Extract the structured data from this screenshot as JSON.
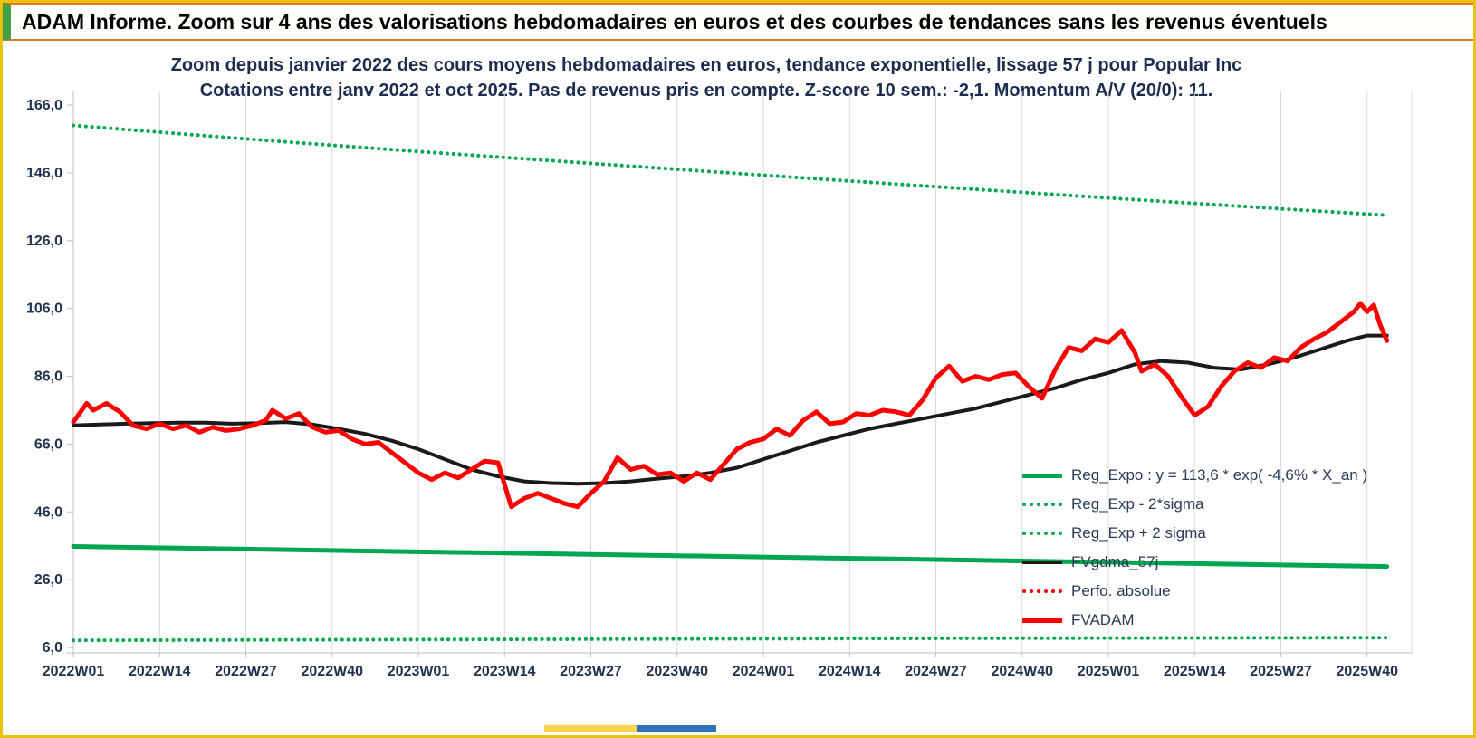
{
  "window": {
    "title": "ADAM Informe. Zoom sur 4 ans des valorisations hebdomadaires en euros et des courbes de tendances sans les revenus éventuels"
  },
  "chart_data": {
    "type": "line",
    "title": "Zoom depuis janvier 2022 des cours moyens hebdomadaires en euros, tendance exponentielle, lissage 57 j pour Popular Inc",
    "subtitle": "Cotations entre janv 2022 et oct 2025. Pas de revenus pris en compte. Z-score 10 sem.: -2,1. Momentum A/V (20/0): 11.",
    "xlim": [
      0,
      202
    ],
    "ylim": [
      6,
      166
    ],
    "grid": "vertical-only",
    "legend_position": "bottom-right-inside",
    "y_ticks": [
      {
        "v": 6,
        "label": "6,0"
      },
      {
        "v": 26,
        "label": "26,0"
      },
      {
        "v": 46,
        "label": "46,0"
      },
      {
        "v": 66,
        "label": "66,0"
      },
      {
        "v": 86,
        "label": "86,0"
      },
      {
        "v": 106,
        "label": "106,0"
      },
      {
        "v": 126,
        "label": "126,0"
      },
      {
        "v": 146,
        "label": "146,0"
      },
      {
        "v": 166,
        "label": "166,0"
      }
    ],
    "x_ticks": [
      {
        "w": 0,
        "label": "2022W01"
      },
      {
        "w": 13,
        "label": "2022W14"
      },
      {
        "w": 26,
        "label": "2022W27"
      },
      {
        "w": 39,
        "label": "2022W40"
      },
      {
        "w": 52,
        "label": "2023W01"
      },
      {
        "w": 65,
        "label": "2023W14"
      },
      {
        "w": 78,
        "label": "2023W27"
      },
      {
        "w": 91,
        "label": "2023W40"
      },
      {
        "w": 104,
        "label": "2024W01"
      },
      {
        "w": 117,
        "label": "2024W14"
      },
      {
        "w": 130,
        "label": "2024W27"
      },
      {
        "w": 143,
        "label": "2024W40"
      },
      {
        "w": 156,
        "label": "2025W01"
      },
      {
        "w": 169,
        "label": "2025W14"
      },
      {
        "w": 182,
        "label": "2025W27"
      },
      {
        "w": 195,
        "label": "2025W40"
      }
    ],
    "series": [
      {
        "name": "Reg_Exp - 2*sigma",
        "color": "#00a651",
        "style": "dotted",
        "width": 4,
        "points": [
          [
            0,
            8.1
          ],
          [
            66,
            8.4
          ],
          [
            132,
            8.7
          ],
          [
            198,
            8.9
          ]
        ]
      },
      {
        "name": "Reg_Exp + 2 sigma",
        "color": "#00a651",
        "style": "dotted",
        "width": 4,
        "points": [
          [
            0,
            160
          ],
          [
            26,
            156
          ],
          [
            52,
            152.3
          ],
          [
            78,
            148.8
          ],
          [
            104,
            145.3
          ],
          [
            130,
            141.9
          ],
          [
            156,
            138.6
          ],
          [
            182,
            135.4
          ],
          [
            198,
            133.5
          ]
        ]
      },
      {
        "name": "Reg_Expo : y = 113,6 * exp( -4,6% * X_an )",
        "color": "#00a651",
        "style": "solid",
        "width": 5,
        "points": [
          [
            0,
            35.8
          ],
          [
            40,
            34.6
          ],
          [
            80,
            33.4
          ],
          [
            120,
            32.2
          ],
          [
            160,
            31
          ],
          [
            198,
            29.9
          ]
        ]
      },
      {
        "name": "FVgdma_57j",
        "color": "#1a1a1a",
        "style": "solid",
        "width": 4,
        "points": [
          [
            0,
            71.5
          ],
          [
            4,
            71.8
          ],
          [
            8,
            72
          ],
          [
            12,
            72.2
          ],
          [
            16,
            72.3
          ],
          [
            20,
            72.3
          ],
          [
            24,
            72
          ],
          [
            28,
            72.2
          ],
          [
            32,
            72.5
          ],
          [
            36,
            71.8
          ],
          [
            40,
            70.5
          ],
          [
            44,
            69
          ],
          [
            48,
            67
          ],
          [
            52,
            64.5
          ],
          [
            56,
            61.5
          ],
          [
            60,
            58.5
          ],
          [
            64,
            56.5
          ],
          [
            68,
            55
          ],
          [
            72,
            54.5
          ],
          [
            76,
            54.3
          ],
          [
            80,
            54.5
          ],
          [
            84,
            55
          ],
          [
            88,
            55.8
          ],
          [
            92,
            56.5
          ],
          [
            96,
            57.5
          ],
          [
            100,
            59
          ],
          [
            104,
            61.5
          ],
          [
            108,
            64
          ],
          [
            112,
            66.5
          ],
          [
            116,
            68.5
          ],
          [
            120,
            70.5
          ],
          [
            124,
            72
          ],
          [
            128,
            73.5
          ],
          [
            132,
            75
          ],
          [
            136,
            76.5
          ],
          [
            140,
            78.5
          ],
          [
            144,
            80.5
          ],
          [
            148,
            82.5
          ],
          [
            152,
            85
          ],
          [
            156,
            87
          ],
          [
            160,
            89.5
          ],
          [
            164,
            90.5
          ],
          [
            168,
            90
          ],
          [
            172,
            88.5
          ],
          [
            176,
            88
          ],
          [
            180,
            89.5
          ],
          [
            184,
            91.5
          ],
          [
            188,
            94
          ],
          [
            192,
            96.5
          ],
          [
            195,
            98
          ],
          [
            198,
            98
          ]
        ]
      },
      {
        "name": "Perfo. absolue",
        "color": "#ff0000",
        "style": "dotted",
        "width": 3,
        "points": []
      },
      {
        "name": "FVADAM",
        "color": "#ff0000",
        "style": "solid",
        "width": 5,
        "points": [
          [
            0,
            72.5
          ],
          [
            2,
            78
          ],
          [
            3,
            76
          ],
          [
            5,
            78
          ],
          [
            7,
            75.5
          ],
          [
            9,
            71.5
          ],
          [
            11,
            70.5
          ],
          [
            13,
            72
          ],
          [
            15,
            70.5
          ],
          [
            17,
            71.5
          ],
          [
            19,
            69.5
          ],
          [
            21,
            71
          ],
          [
            23,
            70
          ],
          [
            25,
            70.5
          ],
          [
            27,
            71.5
          ],
          [
            29,
            73
          ],
          [
            30,
            76
          ],
          [
            32,
            73.5
          ],
          [
            34,
            75
          ],
          [
            36,
            71
          ],
          [
            38,
            69.5
          ],
          [
            40,
            70
          ],
          [
            42,
            67.5
          ],
          [
            44,
            66
          ],
          [
            46,
            66.5
          ],
          [
            48,
            63.5
          ],
          [
            50,
            60.5
          ],
          [
            52,
            57.5
          ],
          [
            54,
            55.5
          ],
          [
            56,
            57.5
          ],
          [
            58,
            56
          ],
          [
            60,
            58.5
          ],
          [
            62,
            61
          ],
          [
            64,
            60.5
          ],
          [
            65,
            54
          ],
          [
            66,
            47.5
          ],
          [
            68,
            50
          ],
          [
            70,
            51.5
          ],
          [
            72,
            50
          ],
          [
            74,
            48.5
          ],
          [
            76,
            47.5
          ],
          [
            78,
            51.5
          ],
          [
            80,
            55
          ],
          [
            82,
            62
          ],
          [
            84,
            58.5
          ],
          [
            86,
            59.5
          ],
          [
            88,
            57
          ],
          [
            90,
            57.5
          ],
          [
            92,
            55
          ],
          [
            94,
            57.5
          ],
          [
            96,
            55.5
          ],
          [
            98,
            60
          ],
          [
            100,
            64.5
          ],
          [
            102,
            66.5
          ],
          [
            104,
            67.5
          ],
          [
            106,
            70.5
          ],
          [
            108,
            68.5
          ],
          [
            110,
            73
          ],
          [
            112,
            75.5
          ],
          [
            114,
            72
          ],
          [
            116,
            72.5
          ],
          [
            118,
            75
          ],
          [
            120,
            74.5
          ],
          [
            122,
            76
          ],
          [
            124,
            75.5
          ],
          [
            126,
            74.5
          ],
          [
            128,
            79
          ],
          [
            130,
            85.5
          ],
          [
            132,
            89
          ],
          [
            134,
            84.5
          ],
          [
            136,
            86
          ],
          [
            138,
            85
          ],
          [
            140,
            86.5
          ],
          [
            142,
            87
          ],
          [
            144,
            83
          ],
          [
            146,
            79.5
          ],
          [
            148,
            88
          ],
          [
            150,
            94.5
          ],
          [
            152,
            93.5
          ],
          [
            154,
            97
          ],
          [
            156,
            96
          ],
          [
            158,
            99.5
          ],
          [
            160,
            93
          ],
          [
            161,
            87.5
          ],
          [
            163,
            89.5
          ],
          [
            165,
            86
          ],
          [
            167,
            80
          ],
          [
            169,
            74.5
          ],
          [
            171,
            77
          ],
          [
            173,
            83
          ],
          [
            175,
            87.5
          ],
          [
            177,
            90
          ],
          [
            179,
            88.5
          ],
          [
            181,
            91.5
          ],
          [
            183,
            90.5
          ],
          [
            185,
            94.5
          ],
          [
            187,
            97
          ],
          [
            189,
            99
          ],
          [
            191,
            102
          ],
          [
            193,
            105
          ],
          [
            194,
            107.5
          ],
          [
            195,
            105
          ],
          [
            196,
            107
          ],
          [
            197,
            101
          ],
          [
            198,
            96.5
          ]
        ]
      }
    ]
  },
  "legend": {
    "items": [
      {
        "label": "Reg_Expo : y = 113,6 * exp( -4,6% *  X_an )",
        "style": "green-solid"
      },
      {
        "label": "Reg_Exp - 2*sigma",
        "style": "green-dotted"
      },
      {
        "label": "Reg_Exp + 2 sigma",
        "style": "green-dotted"
      },
      {
        "label": "FVgdma_57j",
        "style": "black-solid"
      },
      {
        "label": "Perfo. absolue",
        "style": "red-dotted"
      },
      {
        "label": "FVADAM",
        "style": "red-solid"
      }
    ]
  },
  "colors": {
    "green": "#00a651",
    "red": "#ff0000",
    "black": "#1a1a1a",
    "grid": "#d9d9d9",
    "axis_text": "#22334f",
    "frame_gold": "#e9c30b",
    "frame_orange": "#e87722",
    "titlebar_accent_green": "#43a047",
    "bottom_yellow": "#ffd34d",
    "bottom_blue": "#2e75b6"
  }
}
